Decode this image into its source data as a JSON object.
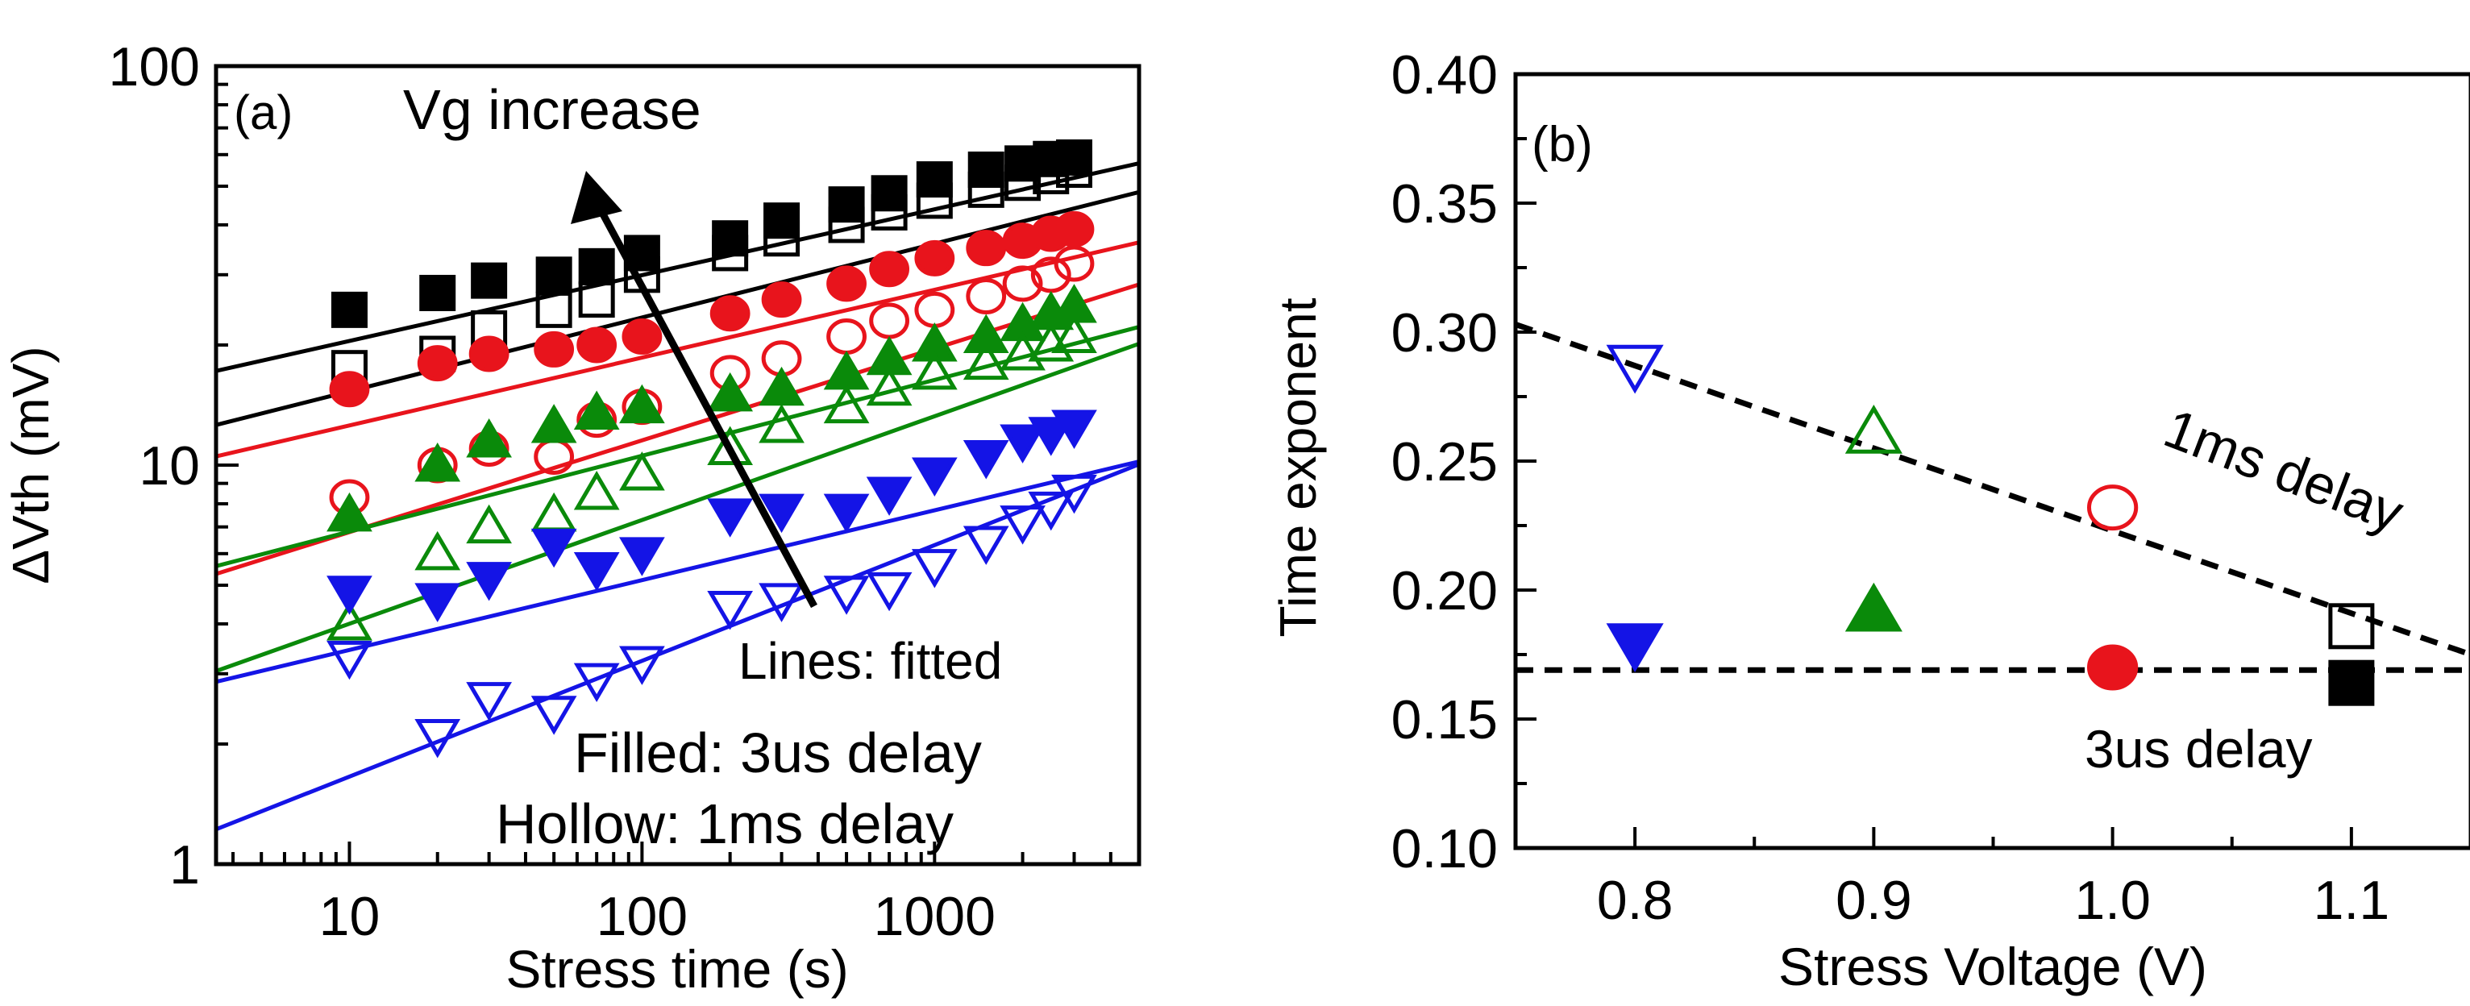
{
  "chart_data": [
    {
      "type": "scatter",
      "panel_label": "(a)",
      "xlabel": "Stress time (s)",
      "ylabel": "ΔVth (mV)",
      "xscale": "log",
      "yscale": "log",
      "xlim": [
        3.5,
        5000
      ],
      "ylim": [
        1,
        100
      ],
      "xticks": [
        {
          "v": 10,
          "label": "10"
        },
        {
          "v": 100,
          "label": "100"
        },
        {
          "v": 1000,
          "label": "1000"
        }
      ],
      "yticks": [
        {
          "v": 1,
          "label": "1"
        },
        {
          "v": 10,
          "label": "10"
        },
        {
          "v": 100,
          "label": "100"
        }
      ],
      "annotations": {
        "arrow_label": "Vg increase",
        "lines_note": "Lines: fitted",
        "filled_note": "Filled: 3us delay",
        "hollow_note": "Hollow: 1ms delay"
      },
      "series": [
        {
          "name": "3us delay, highest Vg",
          "color": "#000000",
          "marker": "square",
          "filled": true,
          "fit": {
            "a": 14.0,
            "n": 0.165
          },
          "x": [
            10,
            20,
            30,
            50,
            70,
            100,
            200,
            300,
            500,
            700,
            1000,
            1500,
            2000,
            2500,
            3000
          ],
          "y": [
            24.5,
            27,
            29,
            30,
            31.5,
            34,
            37,
            41,
            45,
            48,
            52,
            55,
            57,
            58.5,
            59
          ]
        },
        {
          "name": "1ms delay, highest Vg",
          "color": "#000000",
          "marker": "square",
          "filled": false,
          "fit": {
            "a": 10.0,
            "n": 0.185
          },
          "x": [
            10,
            20,
            30,
            50,
            70,
            100,
            200,
            300,
            500,
            700,
            1000,
            1500,
            2000,
            2500,
            3000
          ],
          "y": [
            17.5,
            19,
            22,
            24.5,
            26,
            30,
            34,
            37,
            40,
            43,
            46,
            49,
            51,
            53,
            55
          ]
        },
        {
          "name": "3us delay, Vg 1.0",
          "color": "#e8141c",
          "marker": "circle",
          "filled": true,
          "fit": {
            "a": 8.5,
            "n": 0.17
          },
          "x": [
            10,
            20,
            30,
            50,
            70,
            100,
            200,
            300,
            500,
            700,
            1000,
            1500,
            2000,
            2500,
            3000
          ],
          "y": [
            15.5,
            18,
            19,
            19.5,
            20,
            21,
            24,
            26,
            28.5,
            31,
            33,
            35,
            36.5,
            38,
            39
          ]
        },
        {
          "name": "1ms delay, Vg 1.0",
          "color": "#e8141c",
          "marker": "circle",
          "filled": false,
          "fit": {
            "a": 4.0,
            "n": 0.23
          },
          "x": [
            10,
            20,
            30,
            50,
            70,
            100,
            200,
            300,
            500,
            700,
            1000,
            1500,
            2000,
            2500,
            3000
          ],
          "y": [
            8.3,
            10,
            11,
            10.5,
            13,
            14,
            17,
            18.5,
            21,
            23,
            24.5,
            26.5,
            28.5,
            30,
            32
          ]
        },
        {
          "name": "3us delay, Vg 0.9",
          "color": "#0a8a0a",
          "marker": "triangle-up",
          "filled": true,
          "fit": {
            "a": 4.4,
            "n": 0.19
          },
          "x": [
            10,
            20,
            30,
            50,
            70,
            100,
            200,
            300,
            500,
            700,
            1000,
            1500,
            2000,
            2500,
            3000
          ],
          "y": [
            7.5,
            10,
            11.5,
            12.5,
            13.5,
            14,
            15,
            15.5,
            17,
            18.5,
            20,
            21,
            22.5,
            24,
            25
          ]
        },
        {
          "name": "1ms delay, Vg 0.9",
          "color": "#0a8a0a",
          "marker": "triangle-up",
          "filled": false,
          "fit": {
            "a": 2.2,
            "n": 0.26
          },
          "x": [
            10,
            20,
            30,
            50,
            70,
            100,
            200,
            300,
            500,
            700,
            1000,
            1500,
            2000,
            2500,
            3000
          ],
          "y": [
            4,
            6,
            7,
            7.5,
            8.5,
            9.5,
            11,
            12.5,
            14,
            15.5,
            17,
            18,
            19,
            20,
            21
          ]
        },
        {
          "name": "3us delay, Vg 0.8",
          "color": "#1414e6",
          "marker": "triangle-down",
          "filled": true,
          "fit": {
            "a": 2.3,
            "n": 0.175
          },
          "x": [
            10,
            20,
            30,
            50,
            70,
            100,
            200,
            300,
            500,
            700,
            1000,
            1500,
            2000,
            2500,
            3000
          ],
          "y": [
            4.8,
            4.6,
            5.2,
            6.3,
            5.5,
            6,
            7.5,
            7.7,
            7.7,
            8.5,
            9.5,
            10.5,
            11.5,
            12,
            12.5
          ]
        },
        {
          "name": "1ms delay, Vg 0.8",
          "color": "#1414e6",
          "marker": "triangle-down",
          "filled": false,
          "fit": {
            "a": 0.85,
            "n": 0.29
          },
          "x": [
            10,
            20,
            30,
            50,
            70,
            100,
            200,
            300,
            500,
            700,
            1000,
            1500,
            2000,
            2500,
            3000
          ],
          "y": [
            3.3,
            2.1,
            2.6,
            2.4,
            2.9,
            3.2,
            4.4,
            4.6,
            4.8,
            4.9,
            5.6,
            6.4,
            7.2,
            7.8,
            8.6
          ]
        }
      ]
    },
    {
      "type": "scatter",
      "panel_label": "(b)",
      "xlabel": "Stress Voltage (V)",
      "ylabel": "Time exponent",
      "xlim": [
        0.75,
        1.15
      ],
      "ylim": [
        0.1,
        0.4
      ],
      "xticks": [
        {
          "v": 0.8,
          "label": "0.8"
        },
        {
          "v": 0.9,
          "label": "0.9"
        },
        {
          "v": 1.0,
          "label": "1.0"
        },
        {
          "v": 1.1,
          "label": "1.1"
        }
      ],
      "yticks": [
        {
          "v": 0.1,
          "label": "0.10"
        },
        {
          "v": 0.15,
          "label": "0.15"
        },
        {
          "v": 0.2,
          "label": "0.20"
        },
        {
          "v": 0.25,
          "label": "0.25"
        },
        {
          "v": 0.3,
          "label": "0.30"
        },
        {
          "v": 0.35,
          "label": "0.35"
        },
        {
          "v": 0.4,
          "label": "0.40"
        }
      ],
      "annotations": {
        "trend_1ms_label": "1ms delay",
        "trend_3us_label": "3us delay"
      },
      "trend_lines": [
        {
          "name": "1ms delay trend",
          "x": [
            0.75,
            1.15
          ],
          "y": [
            0.303,
            0.175
          ]
        },
        {
          "name": "3us delay trend",
          "x": [
            0.75,
            1.15
          ],
          "y": [
            0.169,
            0.169
          ]
        }
      ],
      "points": [
        {
          "x": 0.8,
          "y": 0.287,
          "marker": "triangle-down",
          "color": "#1414e6",
          "filled": false
        },
        {
          "x": 0.9,
          "y": 0.261,
          "marker": "triangle-up",
          "color": "#0a8a0a",
          "filled": false
        },
        {
          "x": 1.0,
          "y": 0.232,
          "marker": "circle",
          "color": "#e8141c",
          "filled": false
        },
        {
          "x": 1.1,
          "y": 0.186,
          "marker": "square",
          "color": "#000000",
          "filled": false
        },
        {
          "x": 0.8,
          "y": 0.179,
          "marker": "triangle-down",
          "color": "#1414e6",
          "filled": true
        },
        {
          "x": 0.9,
          "y": 0.192,
          "marker": "triangle-up",
          "color": "#0a8a0a",
          "filled": true
        },
        {
          "x": 1.0,
          "y": 0.17,
          "marker": "circle",
          "color": "#e8141c",
          "filled": true
        },
        {
          "x": 1.1,
          "y": 0.164,
          "marker": "square",
          "color": "#000000",
          "filled": true
        }
      ]
    }
  ]
}
